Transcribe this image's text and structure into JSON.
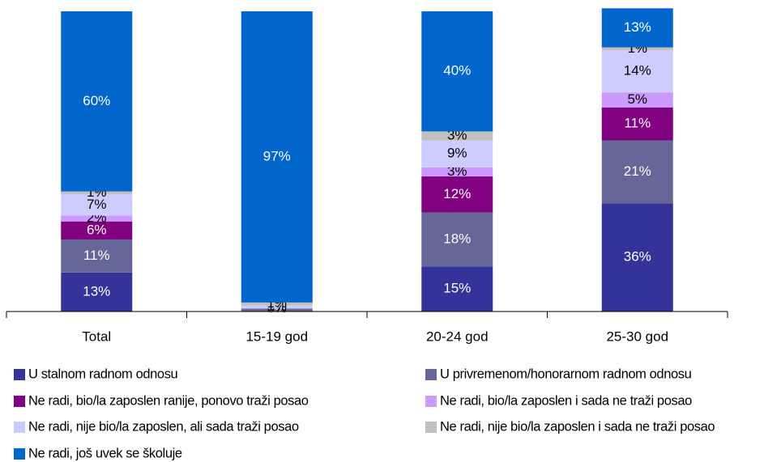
{
  "chart_data": {
    "type": "stacked_bar",
    "categories": [
      "Total",
      "15-19 god",
      "20-24 god",
      "25-30 god"
    ],
    "ylim": [
      0,
      100
    ],
    "series": [
      {
        "name": "U stalnom radnom odnosu",
        "color": "#333399",
        "label_color": "#ffffff",
        "values": [
          13,
          0,
          15,
          36
        ],
        "value_labels": [
          "13%",
          "0%",
          "15%",
          "36%"
        ]
      },
      {
        "name": "U privremenom/honorarnom radnom odnosu",
        "color": "#666699",
        "label_color": "#ffffff",
        "values": [
          11,
          1,
          18,
          21
        ],
        "value_labels": [
          "11%",
          "1%",
          "18%",
          "21%"
        ]
      },
      {
        "name": "Ne radi, bio/la zaposlen ranije, ponovo traži posao",
        "color": "#800080",
        "label_color": "#ffffff",
        "values": [
          6,
          0,
          12,
          11
        ],
        "value_labels": [
          "6%",
          "0%",
          "12%",
          "11%"
        ]
      },
      {
        "name": "Ne radi, bio/la zaposlen i sada ne traži posao",
        "color": "#cc99ff",
        "label_color": "#000000",
        "values": [
          2,
          0,
          3,
          5
        ],
        "value_labels": [
          "2%",
          "0%",
          "3%",
          "5%"
        ]
      },
      {
        "name": "Ne radi, nije bio/la zaposlen, ali sada traži posao",
        "color": "#ccccff",
        "label_color": "#000000",
        "values": [
          7,
          1,
          9,
          14
        ],
        "value_labels": [
          "7%",
          "1%",
          "9%",
          "14%"
        ]
      },
      {
        "name": "Ne radi, nije bio/la zaposlen i sada ne traži posao",
        "color": "#c0c0c0",
        "label_color": "#000000",
        "values": [
          1,
          1,
          3,
          1
        ],
        "value_labels": [
          "1%",
          "1%",
          "3%",
          "1%"
        ]
      },
      {
        "name": "Ne radi, još uvek se školuje",
        "color": "#0066cc",
        "label_color": "#ffffff",
        "values": [
          60,
          97,
          40,
          13
        ],
        "value_labels": [
          "60%",
          "97%",
          "40%",
          "13%"
        ]
      }
    ]
  }
}
